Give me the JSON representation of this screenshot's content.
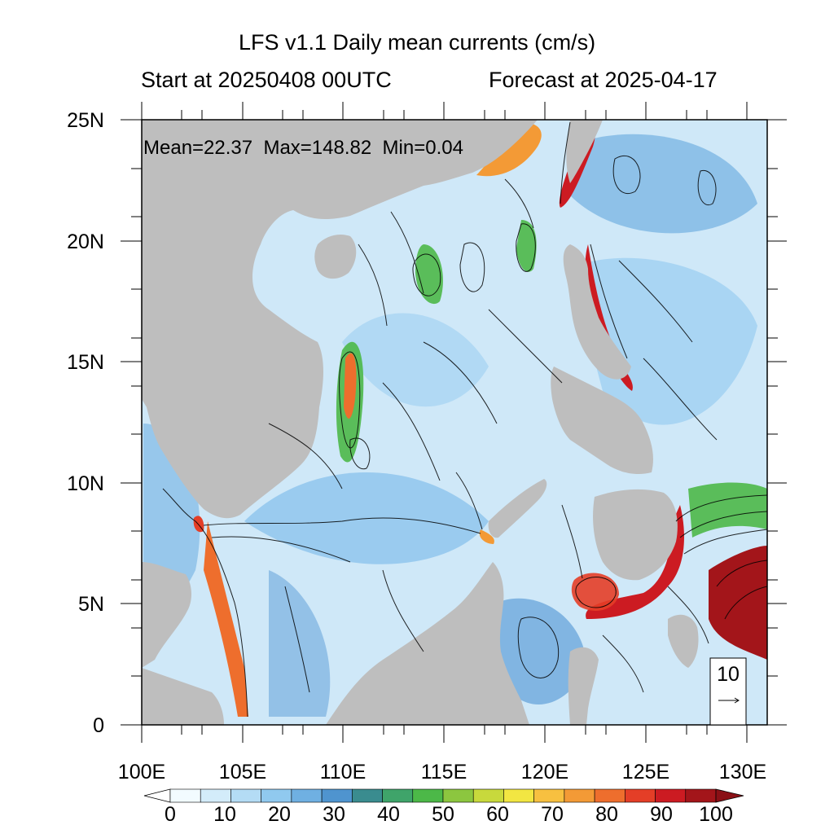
{
  "header": {
    "title": "LFS v1.1 Daily mean currents (cm/s)",
    "start": "Start at 20250408 00UTC",
    "forecast": "Forecast at 2025-04-17"
  },
  "stats": {
    "text": "Mean=22.37  Max=148.82  Min=0.04"
  },
  "axes": {
    "lat_labels": [
      "0",
      "5N",
      "10N",
      "15N",
      "20N",
      "25N"
    ],
    "lon_labels": [
      "100E",
      "105E",
      "110E",
      "115E",
      "120E",
      "125E",
      "130E"
    ],
    "lat_range": [
      0,
      25
    ],
    "lon_range": [
      100,
      130
    ]
  },
  "reference_vector": {
    "label": "10"
  },
  "colorbar": {
    "labels": [
      "0",
      "10",
      "20",
      "30",
      "40",
      "50",
      "60",
      "70",
      "80",
      "90",
      "100"
    ],
    "colors": [
      "#f2fbff",
      "#d3ecfa",
      "#b4dcf5",
      "#90c9ef",
      "#6fb0e2",
      "#4f94cf",
      "#3a8c8f",
      "#3fa46a",
      "#4cb848",
      "#8cc63f",
      "#c8d93c",
      "#f2e642",
      "#f7c040",
      "#f39a36",
      "#ee6e2d",
      "#e43e27",
      "#cc1b22",
      "#a3151a"
    ],
    "land_color": "#bebebe"
  }
}
